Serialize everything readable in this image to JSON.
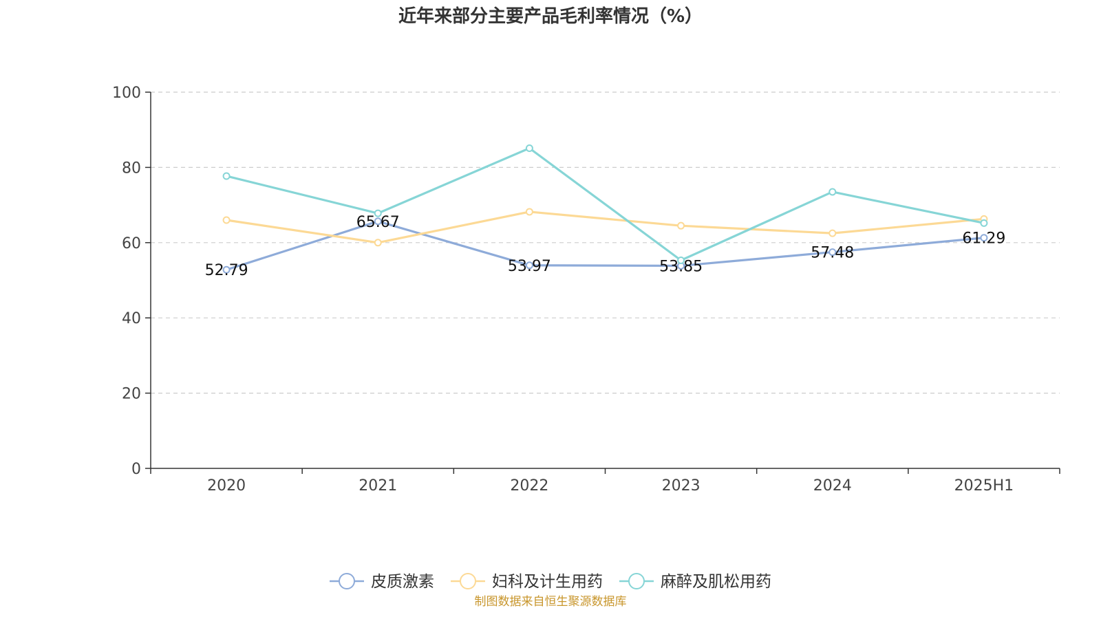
{
  "chart_data": {
    "type": "line",
    "title": "近年来部分主要产品毛利率情况（%）",
    "categories": [
      "2020",
      "2021",
      "2022",
      "2023",
      "2024",
      "2025H1"
    ],
    "ylim": [
      0,
      100
    ],
    "yticks": [
      0,
      20,
      40,
      60,
      80,
      100
    ],
    "grid": true,
    "legend_position": "bottom",
    "series": [
      {
        "name": "皮质激素",
        "color": "#8eabd9",
        "values": [
          52.79,
          65.67,
          53.97,
          53.85,
          57.48,
          61.29
        ],
        "data_labels": [
          "52.79",
          "65.67",
          "53.97",
          "53.85",
          "57.48",
          "61.29"
        ]
      },
      {
        "name": "妇科及计生用药",
        "color": "#fcd995",
        "values": [
          66.0,
          60.0,
          68.2,
          64.5,
          62.5,
          66.3
        ]
      },
      {
        "name": "麻醉及肌松用药",
        "color": "#86d5d6",
        "values": [
          77.7,
          67.8,
          85.1,
          55.3,
          73.5,
          65.2
        ]
      }
    ],
    "source": "制图数据来自恒生聚源数据库"
  }
}
